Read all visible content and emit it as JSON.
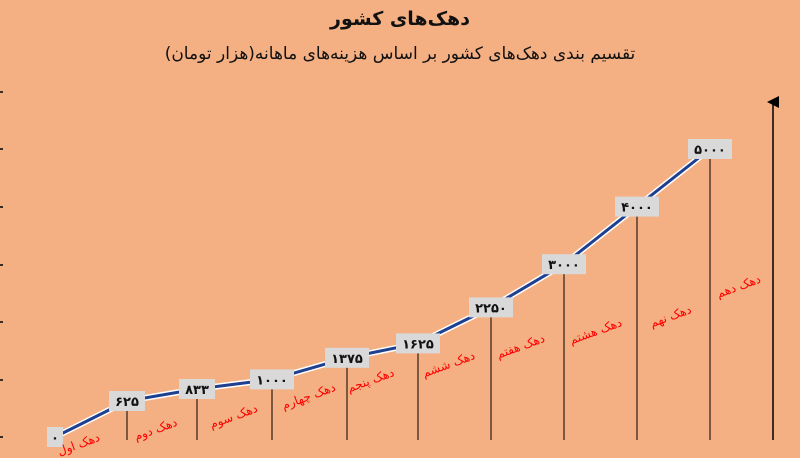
{
  "chart_data": {
    "type": "line",
    "title": "دهک‌های کشور",
    "subtitle": "تقسیم بندی دهک‌های کشور بر اساس هزینه‌های ماهانه(هزار تومان)",
    "categories": [
      "دهک اول",
      "دهک دوم",
      "دهک سوم",
      "دهک چهارم",
      "دهک پنجم",
      "دهک ششم",
      "دهک هفتم",
      "دهک هشتم",
      "دهک نهم",
      "دهک دهم"
    ],
    "values": [
      0,
      625,
      833,
      1000,
      1375,
      1625,
      2250,
      3000,
      4000,
      5000
    ],
    "value_labels": [
      "۰",
      "۶۲۵",
      "۸۳۳",
      "۱۰۰۰",
      "۱۳۷۵",
      "۱۶۲۵",
      "۲۲۵۰",
      "۳۰۰۰",
      "۴۰۰۰",
      "۵۰۰۰"
    ],
    "ylim": [
      0,
      5000
    ],
    "grid": false,
    "colors": {
      "line": "#1f3f8f",
      "label": "#ff0000",
      "box": "#d9d9d9"
    }
  }
}
